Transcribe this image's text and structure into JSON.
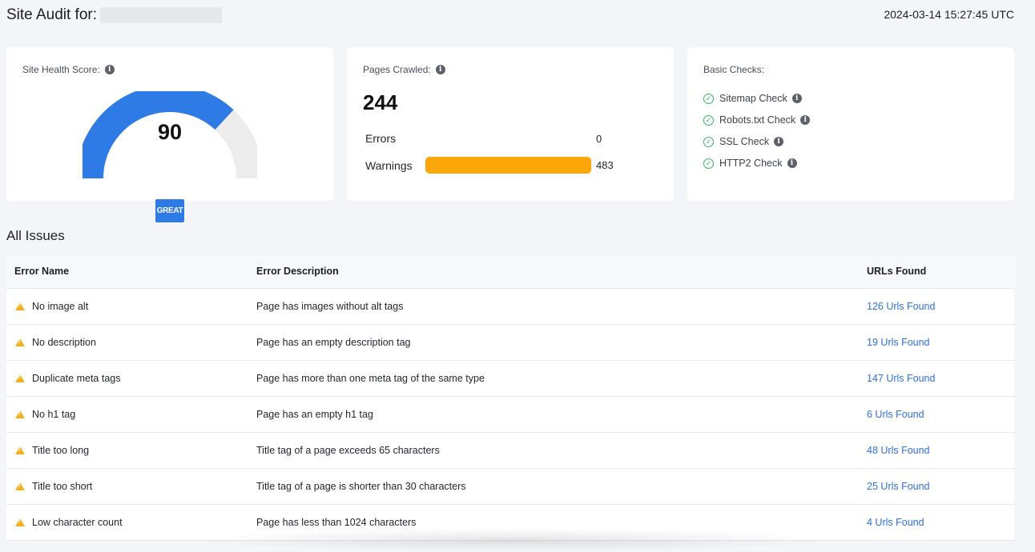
{
  "header": {
    "title": "Site Audit for:",
    "timestamp": "2024-03-14 15:27:45 UTC"
  },
  "health": {
    "label": "Site Health Score:",
    "score": "90",
    "score_value": 90,
    "badge": "GREAT",
    "gauge_color": "#2f7be5",
    "track_color": "#ececec"
  },
  "pages": {
    "label": "Pages Crawled:",
    "value": "244",
    "errors_label": "Errors",
    "errors_value": "0",
    "warnings_label": "Warnings",
    "warnings_value": "483",
    "warnings_color": "#fba70a"
  },
  "checks": {
    "label": "Basic Checks:",
    "items": [
      "Sitemap Check",
      "Robots.txt Check",
      "SSL Check",
      "HTTP2 Check"
    ],
    "status_color": "#36b36a"
  },
  "issues": {
    "title": "All Issues",
    "columns": [
      "Error Name",
      "Error Description",
      "URLs Found"
    ],
    "rows": [
      {
        "name": "No image alt",
        "description": "Page has images without alt tags",
        "urls": "126 Urls Found"
      },
      {
        "name": "No description",
        "description": "Page has an empty description tag",
        "urls": "19 Urls Found"
      },
      {
        "name": "Duplicate meta tags",
        "description": "Page has more than one meta tag of the same type",
        "urls": "147 Urls Found"
      },
      {
        "name": "No h1 tag",
        "description": "Page has an empty h1 tag",
        "urls": "6 Urls Found"
      },
      {
        "name": "Title too long",
        "description": "Title tag of a page exceeds 65 characters",
        "urls": "48 Urls Found"
      },
      {
        "name": "Title too short",
        "description": "Title tag of a page is shorter than 30 characters",
        "urls": "25 Urls Found"
      },
      {
        "name": "Low character count",
        "description": "Page has less than 1024 characters",
        "urls": "4 Urls Found"
      }
    ]
  }
}
